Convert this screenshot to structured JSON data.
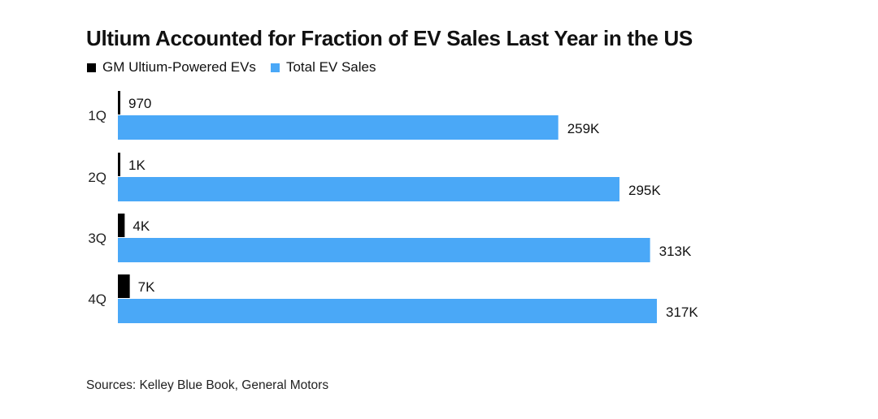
{
  "chart_data": {
    "type": "bar",
    "orientation": "horizontal",
    "title": "Ultium Accounted for Fraction of EV Sales Last Year in the US",
    "categories": [
      "1Q",
      "2Q",
      "3Q",
      "4Q"
    ],
    "series": [
      {
        "name": "GM Ultium-Powered EVs",
        "color": "#000000",
        "values": [
          970,
          1000,
          4000,
          7000
        ],
        "labels": [
          "970",
          "1K",
          "4K",
          "7K"
        ]
      },
      {
        "name": "Total EV Sales",
        "color": "#4aa8f7",
        "values": [
          259000,
          295000,
          313000,
          317000
        ],
        "labels": [
          "259K",
          "295K",
          "313K",
          "317K"
        ]
      }
    ],
    "legend_position": "top-left",
    "grid": false,
    "xlim": [
      0,
      317000
    ],
    "source": "Sources: Kelley Blue Book, General Motors"
  }
}
